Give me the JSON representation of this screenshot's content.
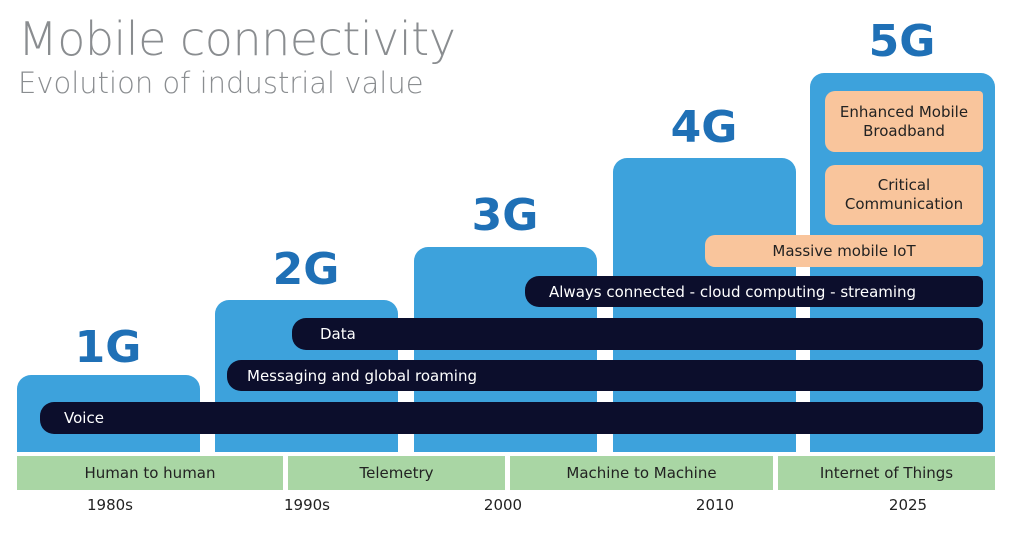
{
  "header": {
    "title": "Mobile connectivity",
    "subtitle": "Evolution of industrial value"
  },
  "generations": [
    {
      "label": "1G"
    },
    {
      "label": "2G"
    },
    {
      "label": "3G"
    },
    {
      "label": "4G"
    },
    {
      "label": "5G"
    }
  ],
  "capabilities": [
    {
      "label": "Voice"
    },
    {
      "label": "Messaging and global roaming"
    },
    {
      "label": "Data"
    },
    {
      "label": "Always connected - cloud computing - streaming"
    },
    {
      "label": "Massive mobile IoT"
    },
    {
      "label": "Critical Communication"
    },
    {
      "label": "Enhanced Mobile Broadband"
    }
  ],
  "eras": [
    {
      "label": "Human to human"
    },
    {
      "label": "Telemetry"
    },
    {
      "label": "Machine to Machine"
    },
    {
      "label": "Internet of Things"
    }
  ],
  "years": [
    "1980s",
    "1990s",
    "2000",
    "2010",
    "2025"
  ]
}
